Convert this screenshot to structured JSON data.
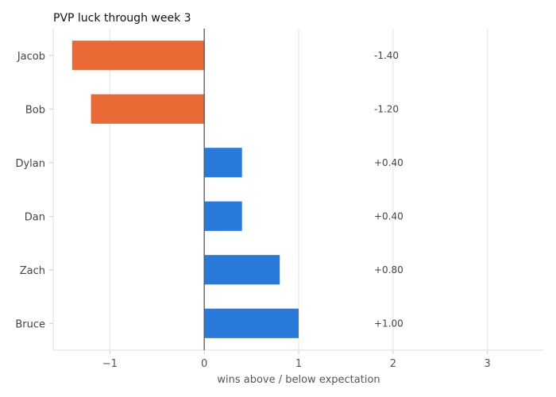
{
  "chart_data": {
    "type": "bar",
    "orientation": "horizontal",
    "title": "PVP luck through week 3",
    "xlabel": "wins above / below expectation",
    "ylabel": "",
    "categories": [
      "Jacob",
      "Bob",
      "Dylan",
      "Dan",
      "Zach",
      "Bruce"
    ],
    "values": [
      -1.4,
      -1.2,
      0.4,
      0.4,
      0.8,
      1.0
    ],
    "value_labels": [
      "-1.40",
      "-1.20",
      "+0.40",
      "+0.40",
      "+0.80",
      "+1.00"
    ],
    "xlim": [
      -1.6,
      3.6
    ],
    "x_ticks": [
      -1,
      0,
      1,
      2,
      3
    ],
    "x_tick_labels": [
      "−1",
      "0",
      "1",
      "2",
      "3"
    ],
    "grid": "vertical",
    "colors": {
      "negative": "#EA6A35",
      "positive": "#2979D9",
      "zero_line": "#555555"
    }
  }
}
